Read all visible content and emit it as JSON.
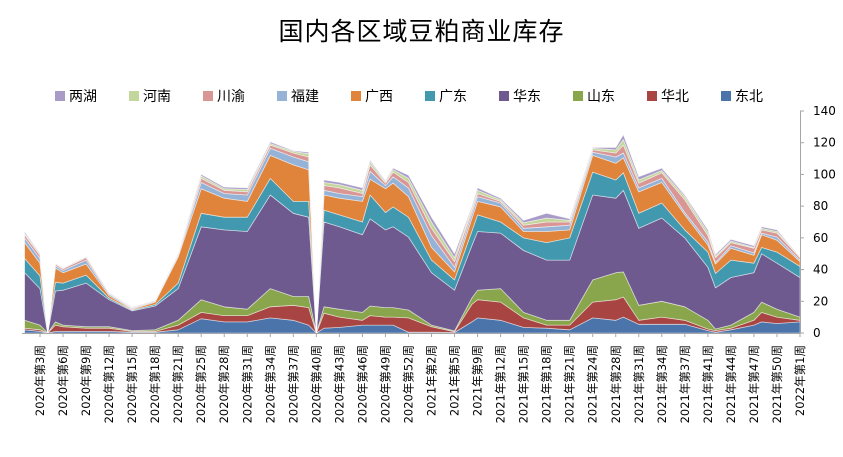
{
  "chart_data": {
    "type": "area",
    "stacked": true,
    "title": "国内各区域豆粕商业库存",
    "xlabel": "",
    "ylabel": "",
    "y_axis_side": "right",
    "ylim": [
      0,
      140
    ],
    "y_ticks": [
      "0",
      "20",
      "40",
      "60",
      "80",
      "100",
      "120",
      "140"
    ],
    "grid": false,
    "legend_position": "top",
    "tick_labels": [
      "2020年第3周",
      "2020年第6周",
      "2020年第9周",
      "2020年第12周",
      "2020年第15周",
      "2020年第18周",
      "2020年第21周",
      "2020年第25周",
      "2020年第28周",
      "2020年第31周",
      "2020年第34周",
      "2020年第37周",
      "2020年第40周",
      "2020年第43周",
      "2020年第46周",
      "2020年第49周",
      "2020年第52周",
      "2021年第2周",
      "2021年第5周",
      "2021年第9周",
      "2021年第12周",
      "2021年第15周",
      "2021年第18周",
      "2021年第21周",
      "2021年第24周",
      "2021年第28周",
      "2021年第31周",
      "2021年第34周",
      "2021年第37周",
      "2021年第41周",
      "2021年第44周",
      "2021年第47周",
      "2021年第50周",
      "2022年第1周"
    ],
    "categories": [
      "2020年第1周",
      "2020年第3周",
      "2020年第4周",
      "2020年第5周",
      "2020年第6周",
      "2020年第9周",
      "2020年第12周",
      "2020年第15周",
      "2020年第18周",
      "2020年第21周",
      "2020年第25周",
      "2020年第28周",
      "2020年第31周",
      "2020年第34周",
      "2020年第37周",
      "2020年第39周",
      "2020年第40周",
      "2020年第41周",
      "2020年第43周",
      "2020年第46周",
      "2020年第47周",
      "2020年第49周",
      "2020年第50周",
      "2020年第52周",
      "2021年第2周",
      "2021年第5周",
      "2021年第8周",
      "2021年第9周",
      "2021年第12周",
      "2021年第15周",
      "2021年第18周",
      "2021年第21周",
      "2021年第24周",
      "2021年第28周",
      "2021年第29周",
      "2021年第31周",
      "2021年第34周",
      "2021年第37周",
      "2021年第41周",
      "2021年第42周",
      "2021年第44周",
      "2021年第47周",
      "2021年第48周",
      "2021年第50周",
      "2022年第1周"
    ],
    "series": [
      {
        "name": "东北",
        "color": "#4a74aa",
        "values": [
          2,
          1,
          0,
          1,
          1,
          1,
          1,
          0.5,
          0.5,
          2,
          9,
          7,
          7,
          9.5,
          8,
          5,
          0,
          3,
          3.5,
          5,
          5,
          5,
          5,
          0.5,
          0.5,
          0.3,
          7,
          9.5,
          8,
          3.5,
          3,
          2,
          9.5,
          8,
          10,
          5.5,
          5.5,
          5.5,
          1.5,
          0.5,
          2,
          5,
          7,
          6,
          7
        ]
      },
      {
        "name": "华北",
        "color": "#a84441",
        "values": [
          1,
          1,
          0,
          4,
          3,
          2,
          2,
          0.5,
          0.5,
          3,
          4,
          4,
          4,
          7,
          9.5,
          11,
          0,
          9.5,
          6.5,
          3,
          6,
          5,
          5,
          9,
          3.5,
          0.5,
          11,
          11.5,
          11.5,
          6,
          2,
          3,
          10,
          13,
          12.7,
          2.5,
          4.5,
          2.5,
          1,
          1,
          1,
          3,
          6,
          4,
          1
        ]
      },
      {
        "name": "山东",
        "color": "#8aa64c",
        "values": [
          5,
          3,
          0,
          2,
          1,
          1,
          1,
          0.5,
          1,
          3,
          8,
          5.5,
          4,
          11.5,
          5.5,
          7,
          0,
          4,
          5,
          5,
          6,
          6,
          6,
          5,
          1,
          0.5,
          4,
          6,
          8.5,
          3.5,
          3,
          3,
          14,
          17,
          15.8,
          9.5,
          10,
          8.5,
          5.5,
          1,
          2,
          5,
          6.5,
          5,
          2
        ]
      },
      {
        "name": "华东",
        "color": "#6f5a8f",
        "values": [
          30,
          23,
          0,
          19.5,
          22,
          27.5,
          17,
          12.5,
          15,
          20,
          46,
          48.5,
          49,
          59,
          52.5,
          50,
          0,
          53.5,
          52,
          49,
          55,
          49,
          51,
          46,
          33,
          25.7,
          33,
          37,
          35,
          39,
          38,
          38,
          53.5,
          47,
          51.5,
          48.5,
          52.5,
          43.5,
          33.5,
          26,
          30,
          25,
          30.5,
          29,
          25
        ]
      },
      {
        "name": "广东",
        "color": "#4198af",
        "values": [
          9,
          8,
          0,
          5.5,
          4.5,
          5,
          1,
          0.5,
          1,
          3.5,
          8.5,
          8,
          9,
          10.5,
          7.5,
          10,
          0,
          7.5,
          7.5,
          8,
          15,
          11,
          12.5,
          12.5,
          8,
          6.5,
          9,
          10.5,
          7,
          8,
          11,
          14,
          14.5,
          11.5,
          11,
          9.5,
          9.5,
          5,
          9.5,
          9,
          11,
          6,
          4,
          7,
          7
        ]
      },
      {
        "name": "广西",
        "color": "#e0843b",
        "values": [
          10,
          8,
          0,
          9,
          6.5,
          7,
          1.5,
          0.5,
          1.5,
          16.5,
          15.5,
          12,
          10,
          14.5,
          23,
          20,
          0,
          9.5,
          10.5,
          13,
          10,
          15,
          15,
          13,
          8,
          5,
          8,
          8.5,
          9.5,
          4,
          7,
          5,
          10.5,
          10.5,
          9.5,
          13.5,
          13,
          9.5,
          4.5,
          6,
          7.5,
          5,
          8,
          7.5,
          3
        ]
      },
      {
        "name": "福建",
        "color": "#95b3d7",
        "values": [
          3,
          3,
          0,
          1.5,
          1.5,
          2.5,
          1,
          0.5,
          0.5,
          1,
          4,
          3,
          4,
          4.5,
          5,
          5,
          0,
          3,
          3,
          3,
          5,
          2,
          4,
          5.5,
          7.5,
          3,
          3,
          3,
          2.5,
          2,
          3,
          3,
          2,
          4,
          3,
          2.5,
          2.5,
          1.5,
          2,
          1,
          1.5,
          1.5,
          1,
          2,
          1
        ]
      },
      {
        "name": "川渝",
        "color": "#d99694",
        "values": [
          2,
          2,
          0,
          1,
          1,
          1.5,
          0.5,
          0.4,
          0.3,
          0.5,
          2.5,
          2,
          2,
          2,
          2.5,
          3,
          0,
          3,
          3.5,
          2,
          4,
          1.5,
          3,
          3.5,
          4.5,
          3.5,
          2,
          2,
          1,
          2,
          3,
          2,
          1.5,
          2.5,
          5,
          3,
          3.5,
          8,
          4,
          3,
          2,
          3,
          2,
          2.5,
          1.5
        ]
      },
      {
        "name": "河南",
        "color": "#c3d69b",
        "values": [
          1,
          0.5,
          0,
          0.3,
          0.3,
          0.3,
          0.3,
          0.2,
          0.2,
          0.3,
          1.5,
          1,
          1.5,
          1,
          1,
          2,
          0,
          2,
          2,
          2,
          2,
          1,
          1.5,
          2.5,
          4,
          2.5,
          1.5,
          2,
          1,
          1.5,
          2.5,
          1,
          1,
          2,
          3.5,
          2,
          1.5,
          2,
          2,
          1,
          1,
          0.5,
          1,
          1,
          0.5
        ]
      },
      {
        "name": "两湖",
        "color": "#a99bc8",
        "values": [
          1,
          0.5,
          0,
          0.2,
          0.2,
          0.2,
          0.2,
          0.2,
          0.2,
          0.2,
          1,
          1,
          1,
          1,
          0.5,
          1,
          0,
          1.5,
          1.5,
          1.5,
          1,
          0.5,
          1,
          2,
          3,
          2.5,
          1,
          1.5,
          1,
          1.5,
          3,
          1,
          0.5,
          1.5,
          3,
          2,
          1.5,
          1,
          1.5,
          1,
          1,
          1,
          1,
          1,
          0
        ]
      }
    ]
  }
}
